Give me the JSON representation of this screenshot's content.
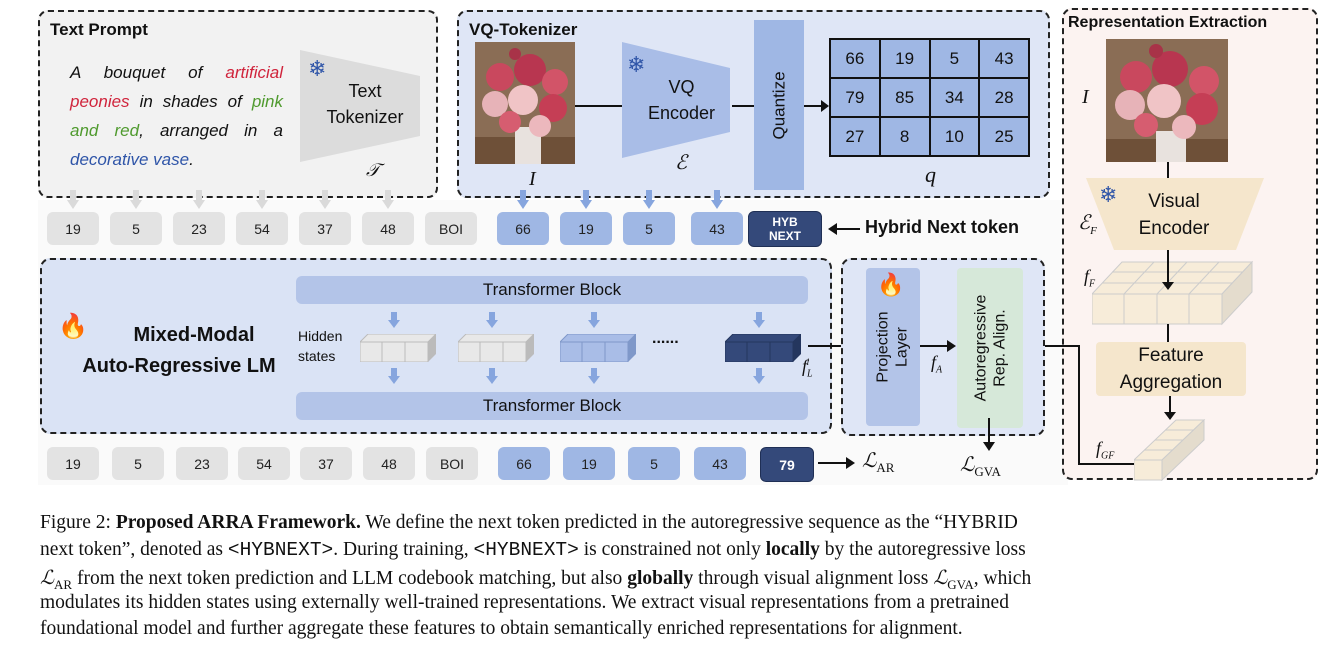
{
  "text_prompt": {
    "title": "Text Prompt",
    "prompt_parts": [
      "A bouquet of ",
      "artificial peonies",
      " in shades of ",
      "pink and red",
      ", arranged in a ",
      "decorative vase",
      "."
    ],
    "tokenizer_label_1": "Text",
    "tokenizer_label_2": "Tokenizer",
    "tokenizer_symbol": "𝒯",
    "colors": {
      "red": "#d0243c",
      "green": "#4f9a2e",
      "blue": "#2f55a8"
    },
    "icon": "snowflake-icon"
  },
  "vq_tokenizer": {
    "title": "VQ-Tokenizer",
    "image_symbol": "I",
    "encoder_label_1": "VQ",
    "encoder_label_2": "Encoder",
    "encoder_symbol": "ℰ",
    "quantize_label": "Quantize",
    "grid": [
      [
        "66",
        "19",
        "5",
        "43"
      ],
      [
        "79",
        "85",
        "34",
        "28"
      ],
      [
        "27",
        "8",
        "10",
        "25"
      ]
    ],
    "grid_symbol": "q"
  },
  "input_tokens": {
    "text": [
      "19",
      "5",
      "23",
      "54",
      "37",
      "48",
      "BOI"
    ],
    "image": [
      "66",
      "19",
      "5",
      "43"
    ],
    "hybrid_line1": "HYB",
    "hybrid_line2": "NEXT",
    "hybrid_label": "Hybrid Next token"
  },
  "lm": {
    "title_line1": "Mixed-Modal",
    "title_line2": "Auto-Regressive LM",
    "transformer_top": "Transformer Block",
    "transformer_bottom": "Transformer Block",
    "hidden_states_1": "Hidden",
    "hidden_states_2": "states",
    "ellipsis": "......",
    "output_symbol": "f",
    "output_sub": "L",
    "output_sup": "i",
    "icon": "fire-icon"
  },
  "projection": {
    "layer_line1": "Projection",
    "layer_line2": "Layer",
    "align_line1": "Autoregressive",
    "align_line2": "Rep. Align.",
    "fa_symbol": "f",
    "fa_sub": "A",
    "loss_symbol": "ℒ",
    "loss_sub": "GVA"
  },
  "output_tokens": {
    "text": [
      "19",
      "5",
      "23",
      "54",
      "37",
      "48",
      "BOI"
    ],
    "image": [
      "66",
      "19",
      "5",
      "43"
    ],
    "next": "79",
    "loss_symbol": "ℒ",
    "loss_sub": "AR"
  },
  "representation": {
    "title": "Representation Extraction",
    "image_symbol": "I",
    "encoder_line1": "Visual",
    "encoder_line2": "Encoder",
    "encoder_symbol": "ℰ",
    "encoder_sub": "F",
    "ff_symbol": "f",
    "ff_sub": "F",
    "aggregation_line1": "Feature",
    "aggregation_line2": "Aggregation",
    "fgf_symbol": "f",
    "fgf_sub": "GF"
  },
  "caption": {
    "l1a": "Figure 2: ",
    "l1b": "Proposed ARRA Framework.",
    "l1c": " We define the next token predicted in the autoregressive sequence as the “HYBRID",
    "l2a": "next token”, denoted as ",
    "l2b": "<HYBNEXT>",
    "l2c": ". During training, ",
    "l2d": "<HYBNEXT>",
    "l2e": " is constrained not only ",
    "l2f": "locally",
    "l2g": " by the autoregressive loss",
    "l3a": "ℒ",
    "l3b": "AR",
    "l3c": " from the next token prediction and LLM codebook matching, but also ",
    "l3d": "globally",
    "l3e": " through visual alignment loss ",
    "l3f": "ℒ",
    "l3g": "GVA",
    "l3h": ", which",
    "l4": "modulates its hidden states using externally well-trained representations. We extract visual representations from a pretrained",
    "l5": "foundational model and further aggregate these features to obtain semantically enriched representations for alignment."
  }
}
